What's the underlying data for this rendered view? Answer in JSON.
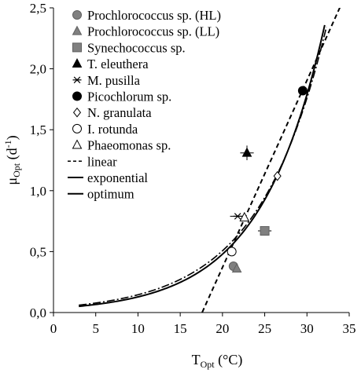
{
  "chart_data": {
    "type": "scatter",
    "title": "",
    "xlabel": {
      "main": "T",
      "sub": "Opt",
      "unit": "(°C)"
    },
    "ylabel": {
      "main": "μ",
      "sub": "Opt",
      "unit": "(d",
      "exp": "-1",
      "close": ")"
    },
    "xlim": [
      0,
      35
    ],
    "ylim": [
      0,
      2.5
    ],
    "x_ticks": [
      0,
      5,
      10,
      15,
      20,
      25,
      30,
      35
    ],
    "x_tick_labels": [
      "0",
      "5",
      "10",
      "15",
      "20",
      "25",
      "30",
      "35"
    ],
    "y_ticks": [
      0,
      0.5,
      1.0,
      1.5,
      2.0,
      2.5
    ],
    "y_tick_labels": [
      "0,0",
      "0,5",
      "1,0",
      "1,5",
      "2,0",
      "2,5"
    ],
    "grid": false,
    "legend_position": "top-left",
    "points": [
      {
        "name": "Prochlorococcus sp. (HL)",
        "marker": "circle",
        "fill": "#808080",
        "x": 21.3,
        "y": 0.38,
        "xerr": 0.0,
        "yerr": 0.0
      },
      {
        "name": "Prochlorococcus sp. (LL)",
        "marker": "triangle",
        "fill": "#808080",
        "x": 21.7,
        "y": 0.36,
        "xerr": 0.0,
        "yerr": 0.0
      },
      {
        "name": "Synechococcus sp.",
        "marker": "square",
        "fill": "#808080",
        "x": 25.0,
        "y": 0.67,
        "xerr": 0.8,
        "yerr": 0.02
      },
      {
        "name": "T. eleuthera",
        "marker": "triangle",
        "fill": "#000000",
        "x": 22.9,
        "y": 1.31,
        "xerr": 0.8,
        "yerr": 0.06
      },
      {
        "name": "M. pusilla",
        "marker": "asterisk",
        "fill": "#000000",
        "x": 21.8,
        "y": 0.79,
        "xerr": 0.9,
        "yerr": 0.0
      },
      {
        "name": "Picochlorum sp.",
        "marker": "circle",
        "fill": "#000000",
        "x": 29.5,
        "y": 1.82,
        "xerr": 0.0,
        "yerr": 0.0
      },
      {
        "name": "N. granulata",
        "marker": "diamond",
        "fill": "#ffffff",
        "x": 26.5,
        "y": 1.12,
        "xerr": 0.0,
        "yerr": 0.0
      },
      {
        "name": "I. rotunda",
        "marker": "circle",
        "fill": "#ffffff",
        "x": 21.1,
        "y": 0.5,
        "xerr": 0.0,
        "yerr": 0.0
      },
      {
        "name": "Phaeomonas sp.",
        "marker": "triangle",
        "fill": "#ffffff",
        "x": 22.6,
        "y": 0.78,
        "xerr": 0.0,
        "yerr": 0.0
      }
    ],
    "lines": [
      {
        "name": "linear",
        "dash": "dash",
        "slope": 0.1535,
        "intercept": -2.7,
        "x_range": [
          17.6,
          34.5
        ]
      },
      {
        "name": "exponential",
        "dash": "solid",
        "a": 0.0343,
        "b": 0.1318,
        "x_range": [
          3,
          32.1
        ]
      },
      {
        "name": "optimum",
        "dash": "solid",
        "a": 0.042,
        "b": 0.1245,
        "x_range": [
          3,
          32.3
        ]
      }
    ]
  }
}
